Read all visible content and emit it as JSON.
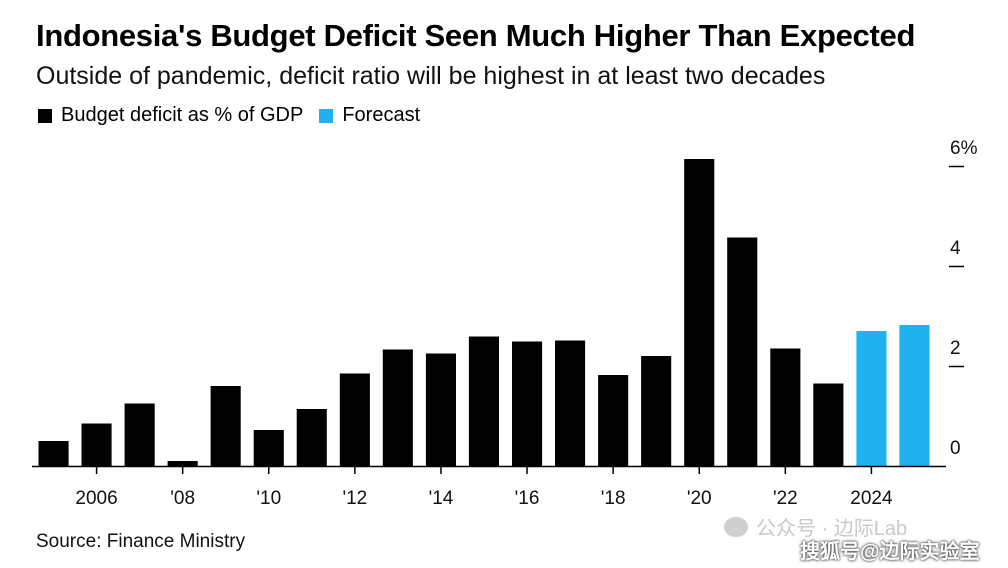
{
  "chart_data": {
    "type": "bar",
    "title": "Indonesia's Budget Deficit Seen Much Higher Than Expected",
    "subtitle": "Outside of pandemic, deficit ratio will be highest in at least two decades",
    "legend": [
      {
        "label": "Budget deficit as % of GDP",
        "color": "#000000"
      },
      {
        "label": "Forecast",
        "color": "#1fb1f0"
      }
    ],
    "categories": [
      "2005",
      "2006",
      "2007",
      "2008",
      "2009",
      "2010",
      "2011",
      "2012",
      "2013",
      "2014",
      "2015",
      "2016",
      "2017",
      "2018",
      "2019",
      "2020",
      "2021",
      "2022",
      "2023",
      "2024",
      "2025"
    ],
    "values": [
      0.5,
      0.85,
      1.25,
      0.1,
      1.6,
      0.72,
      1.14,
      1.85,
      2.33,
      2.25,
      2.59,
      2.49,
      2.51,
      1.82,
      2.2,
      6.14,
      4.57,
      2.35,
      1.65,
      2.7,
      2.82
    ],
    "forecast": [
      false,
      false,
      false,
      false,
      false,
      false,
      false,
      false,
      false,
      false,
      false,
      false,
      false,
      false,
      false,
      false,
      false,
      false,
      false,
      true,
      true
    ],
    "xticks": [
      {
        "category": "2006",
        "label": "2006"
      },
      {
        "category": "2008",
        "label": "'08"
      },
      {
        "category": "2010",
        "label": "'10"
      },
      {
        "category": "2012",
        "label": "'12"
      },
      {
        "category": "2014",
        "label": "'14"
      },
      {
        "category": "2016",
        "label": "'16"
      },
      {
        "category": "2018",
        "label": "'18"
      },
      {
        "category": "2020",
        "label": "'20"
      },
      {
        "category": "2022",
        "label": "'22"
      },
      {
        "category": "2024",
        "label": "2024"
      }
    ],
    "yticks": [
      {
        "value": 0,
        "label": "0"
      },
      {
        "value": 2,
        "label": "2"
      },
      {
        "value": 4,
        "label": "4"
      },
      {
        "value": 6,
        "label": "6%"
      }
    ],
    "ylim": [
      0,
      6.2
    ],
    "xlabel": "",
    "ylabel": "",
    "grid": false,
    "y_axis_side": "right"
  },
  "source": "Source: Finance Ministry",
  "watermarks": {
    "top": "公众号 · 边际Lab",
    "bottom": "搜狐号@边际实验室"
  },
  "colors": {
    "actual": "#000000",
    "forecast": "#1fb1f0",
    "axis": "#000000"
  }
}
